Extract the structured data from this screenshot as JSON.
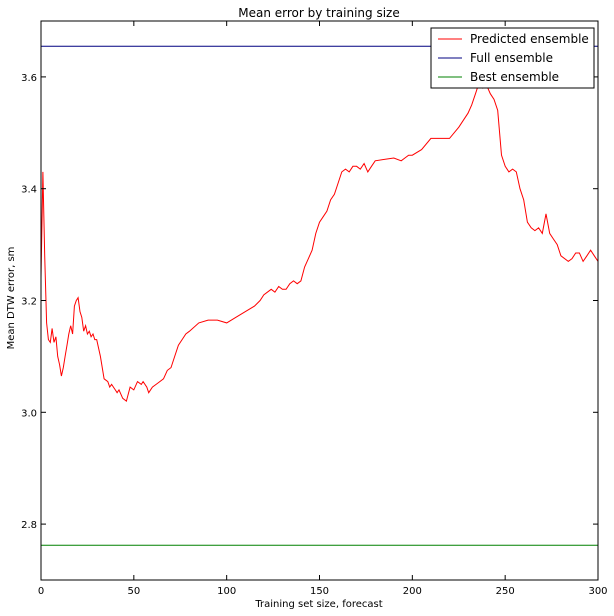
{
  "chart_data": {
    "type": "line",
    "title": "Mean error by training size",
    "xlabel": "Training set size, forecast",
    "ylabel": "Mean DTW error, sm",
    "xlim": [
      0,
      300
    ],
    "ylim": [
      2.7,
      3.7
    ],
    "xticks": [
      0,
      50,
      100,
      150,
      200,
      250,
      300
    ],
    "yticks": [
      2.8,
      3.0,
      3.2,
      3.4,
      3.6
    ],
    "xtick_labels": [
      "0",
      "50",
      "100",
      "150",
      "200",
      "250",
      "300"
    ],
    "ytick_labels": [
      "2.8",
      "3.0",
      "3.2",
      "3.4",
      "3.6"
    ],
    "legend_position": "top-right",
    "series": [
      {
        "name": "Predicted ensemble",
        "color": "#ff0000",
        "x": [
          0,
          1,
          2,
          3,
          4,
          5,
          6,
          7,
          8,
          9,
          10,
          11,
          12,
          13,
          14,
          15,
          16,
          17,
          18,
          19,
          20,
          21,
          22,
          23,
          24,
          25,
          26,
          27,
          28,
          29,
          30,
          32,
          34,
          36,
          37,
          38,
          40,
          41,
          42,
          44,
          46,
          48,
          50,
          52,
          54,
          55,
          57,
          58,
          60,
          62,
          64,
          66,
          68,
          70,
          72,
          74,
          76,
          78,
          80,
          85,
          90,
          95,
          100,
          105,
          110,
          115,
          118,
          120,
          124,
          126,
          128,
          130,
          132,
          134,
          136,
          138,
          140,
          142,
          144,
          146,
          148,
          150,
          152,
          154,
          156,
          158,
          160,
          162,
          164,
          166,
          168,
          170,
          172,
          174,
          176,
          178,
          180,
          190,
          194,
          196,
          198,
          200,
          205,
          210,
          220,
          225,
          228,
          230,
          232,
          234,
          236,
          238,
          240,
          242,
          244,
          246,
          248,
          250,
          252,
          254,
          256,
          258,
          260,
          262,
          264,
          266,
          268,
          270,
          272,
          274,
          276,
          278,
          280,
          284,
          286,
          288,
          290,
          292,
          294,
          296,
          298,
          300
        ],
        "values": [
          3.24,
          3.43,
          3.28,
          3.16,
          3.13,
          3.125,
          3.15,
          3.125,
          3.135,
          3.1,
          3.085,
          3.065,
          3.08,
          3.1,
          3.12,
          3.14,
          3.155,
          3.14,
          3.19,
          3.2,
          3.205,
          3.18,
          3.17,
          3.145,
          3.155,
          3.14,
          3.145,
          3.135,
          3.14,
          3.13,
          3.13,
          3.1,
          3.06,
          3.055,
          3.045,
          3.05,
          3.04,
          3.035,
          3.04,
          3.025,
          3.02,
          3.045,
          3.04,
          3.055,
          3.05,
          3.055,
          3.045,
          3.035,
          3.045,
          3.05,
          3.055,
          3.06,
          3.075,
          3.08,
          3.1,
          3.12,
          3.13,
          3.14,
          3.145,
          3.16,
          3.165,
          3.165,
          3.16,
          3.17,
          3.18,
          3.19,
          3.2,
          3.21,
          3.22,
          3.215,
          3.225,
          3.22,
          3.22,
          3.23,
          3.235,
          3.23,
          3.235,
          3.26,
          3.275,
          3.29,
          3.32,
          3.34,
          3.35,
          3.36,
          3.38,
          3.39,
          3.41,
          3.43,
          3.435,
          3.43,
          3.44,
          3.44,
          3.435,
          3.445,
          3.43,
          3.44,
          3.45,
          3.455,
          3.45,
          3.455,
          3.46,
          3.46,
          3.47,
          3.49,
          3.49,
          3.51,
          3.525,
          3.535,
          3.55,
          3.57,
          3.59,
          3.58,
          3.585,
          3.57,
          3.56,
          3.54,
          3.46,
          3.44,
          3.43,
          3.435,
          3.43,
          3.4,
          3.38,
          3.34,
          3.33,
          3.325,
          3.33,
          3.32,
          3.355,
          3.32,
          3.31,
          3.3,
          3.28,
          3.27,
          3.275,
          3.285,
          3.285,
          3.27,
          3.28,
          3.29,
          3.28,
          3.27
        ]
      },
      {
        "name": "Full ensemble",
        "color": "#000080",
        "x": [
          0,
          300
        ],
        "values": [
          3.655,
          3.655
        ]
      },
      {
        "name": "Best ensemble",
        "color": "#008000",
        "x": [
          0,
          300
        ],
        "values": [
          2.762,
          2.762
        ]
      }
    ]
  }
}
